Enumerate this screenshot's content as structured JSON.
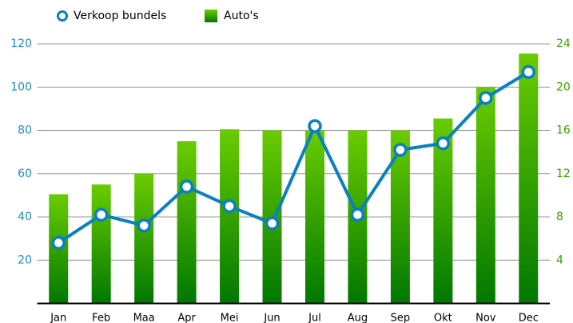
{
  "chart_data": {
    "type": "bar",
    "categories": [
      "Jan",
      "Feb",
      "Maa",
      "Apr",
      "Mei",
      "Jun",
      "Jul",
      "Aug",
      "Sep",
      "Okt",
      "Nov",
      "Dec"
    ],
    "series": [
      {
        "name": "Verkoop bundels",
        "type": "line",
        "color": "#0a80c0",
        "values": [
          28,
          41,
          36,
          54,
          45,
          37,
          82,
          41,
          71,
          74,
          95,
          107
        ]
      },
      {
        "name": "Auto's",
        "type": "bar",
        "axis": "y2",
        "color": "#3aaa00",
        "values": [
          10.1,
          11,
          12,
          15,
          16.1,
          16,
          16,
          16,
          16,
          17.1,
          20,
          23.1
        ]
      }
    ],
    "ylim": [
      0,
      120
    ],
    "yticks": [
      20,
      40,
      60,
      80,
      100,
      120
    ],
    "ycolor": "#1a8fb5",
    "y2lim": [
      0,
      24
    ],
    "y2ticks": [
      4,
      8,
      12,
      16,
      20,
      24
    ],
    "y2color": "#3aa000",
    "grid": true,
    "legend": "top-left"
  }
}
